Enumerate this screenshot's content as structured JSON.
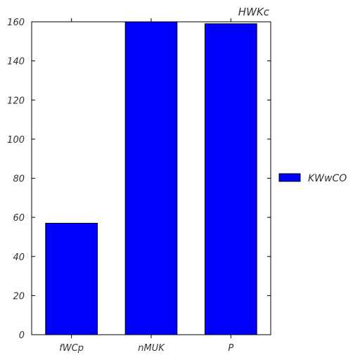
{
  "chart_data": {
    "type": "bar",
    "title": "HWKc",
    "xlabel": "",
    "ylabel": "",
    "categories": [
      "fWCp",
      "nMUK",
      "P"
    ],
    "series": [
      {
        "name": "KWwCO",
        "values": [
          57,
          160,
          159
        ],
        "color": "#0000ff"
      }
    ],
    "ylim": [
      0,
      160
    ],
    "yticks": [
      0,
      20,
      40,
      60,
      80,
      100,
      120,
      140,
      160
    ],
    "grid": false,
    "legend_position": "right"
  }
}
